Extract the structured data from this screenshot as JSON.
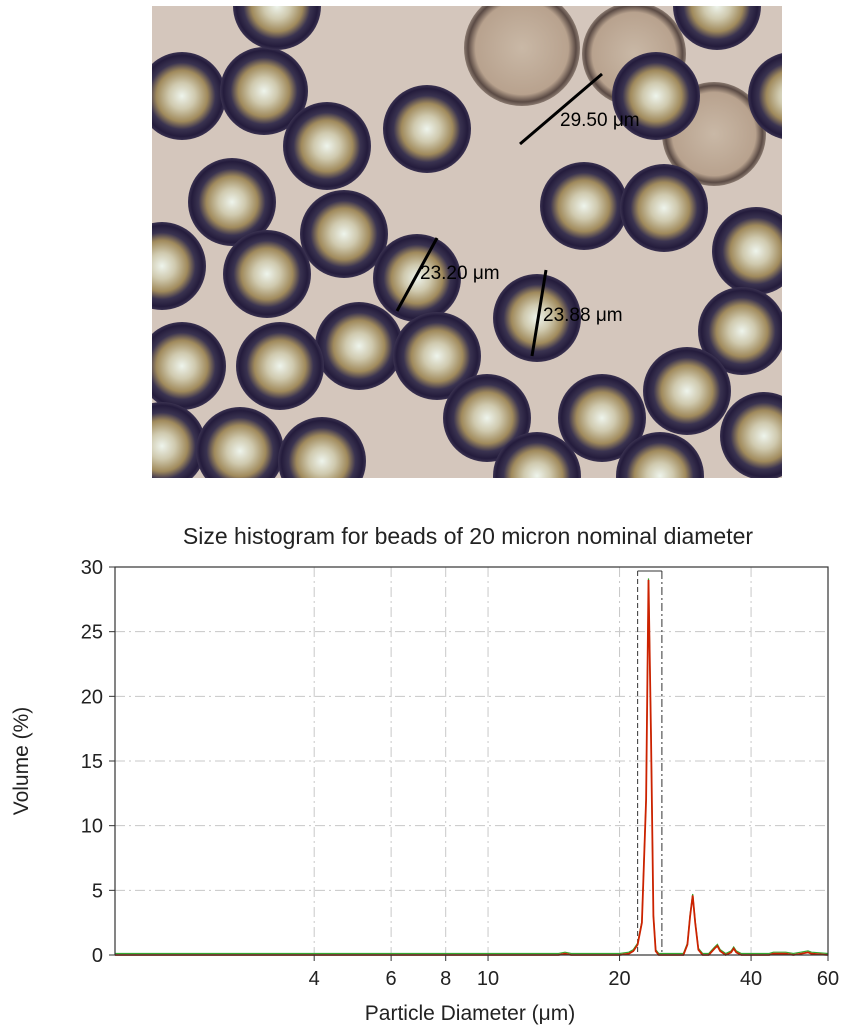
{
  "micrograph": {
    "measurements": [
      {
        "label": "29.50 μm"
      },
      {
        "label": "23.20 μm"
      },
      {
        "label": "23.88 μm"
      }
    ]
  },
  "chart_data": {
    "type": "line",
    "title": "Size histogram for beads of 20 micron nominal diameter",
    "xlabel": "Particle Diameter (μm)",
    "ylabel": "Volume (%)",
    "xscale": "log",
    "xlim": [
      1.4,
      60
    ],
    "ylim": [
      0,
      30
    ],
    "xticks": [
      4,
      6,
      8,
      10,
      20,
      40,
      60
    ],
    "yticks": [
      0,
      5,
      10,
      15,
      20,
      25,
      30
    ],
    "grid": true,
    "colors": {
      "line": "#cc2200",
      "overlay": "#33aa33",
      "grid": "#c8c8c8",
      "marker_box": "#333333"
    },
    "series": [
      {
        "x": [
          1.4,
          10,
          14.5,
          15,
          15.5,
          20,
          21.0,
          21.5,
          22.0,
          22.5,
          23.0,
          23.3,
          23.6,
          23.9,
          24.2,
          24.6,
          25,
          26,
          27,
          28,
          28.6,
          29.0,
          29.4,
          29.8,
          30.3,
          31,
          32,
          33,
          33.5,
          34,
          35,
          36,
          36.5,
          37,
          38,
          40,
          44,
          45,
          48,
          50,
          52,
          54,
          55,
          60
        ],
        "y": [
          0,
          0,
          0,
          0.1,
          0,
          0,
          0.1,
          0.3,
          0.8,
          2.5,
          12,
          29,
          17,
          3,
          0.3,
          0,
          0,
          0,
          0,
          0,
          0.8,
          3.0,
          4.6,
          2.5,
          0.4,
          0,
          0,
          0.5,
          0.7,
          0.3,
          0,
          0.2,
          0.5,
          0.2,
          0,
          0,
          0,
          0.1,
          0.1,
          0,
          0.1,
          0.2,
          0.1,
          0
        ]
      }
    ],
    "selection_band": [
      22.0,
      25.0
    ]
  }
}
